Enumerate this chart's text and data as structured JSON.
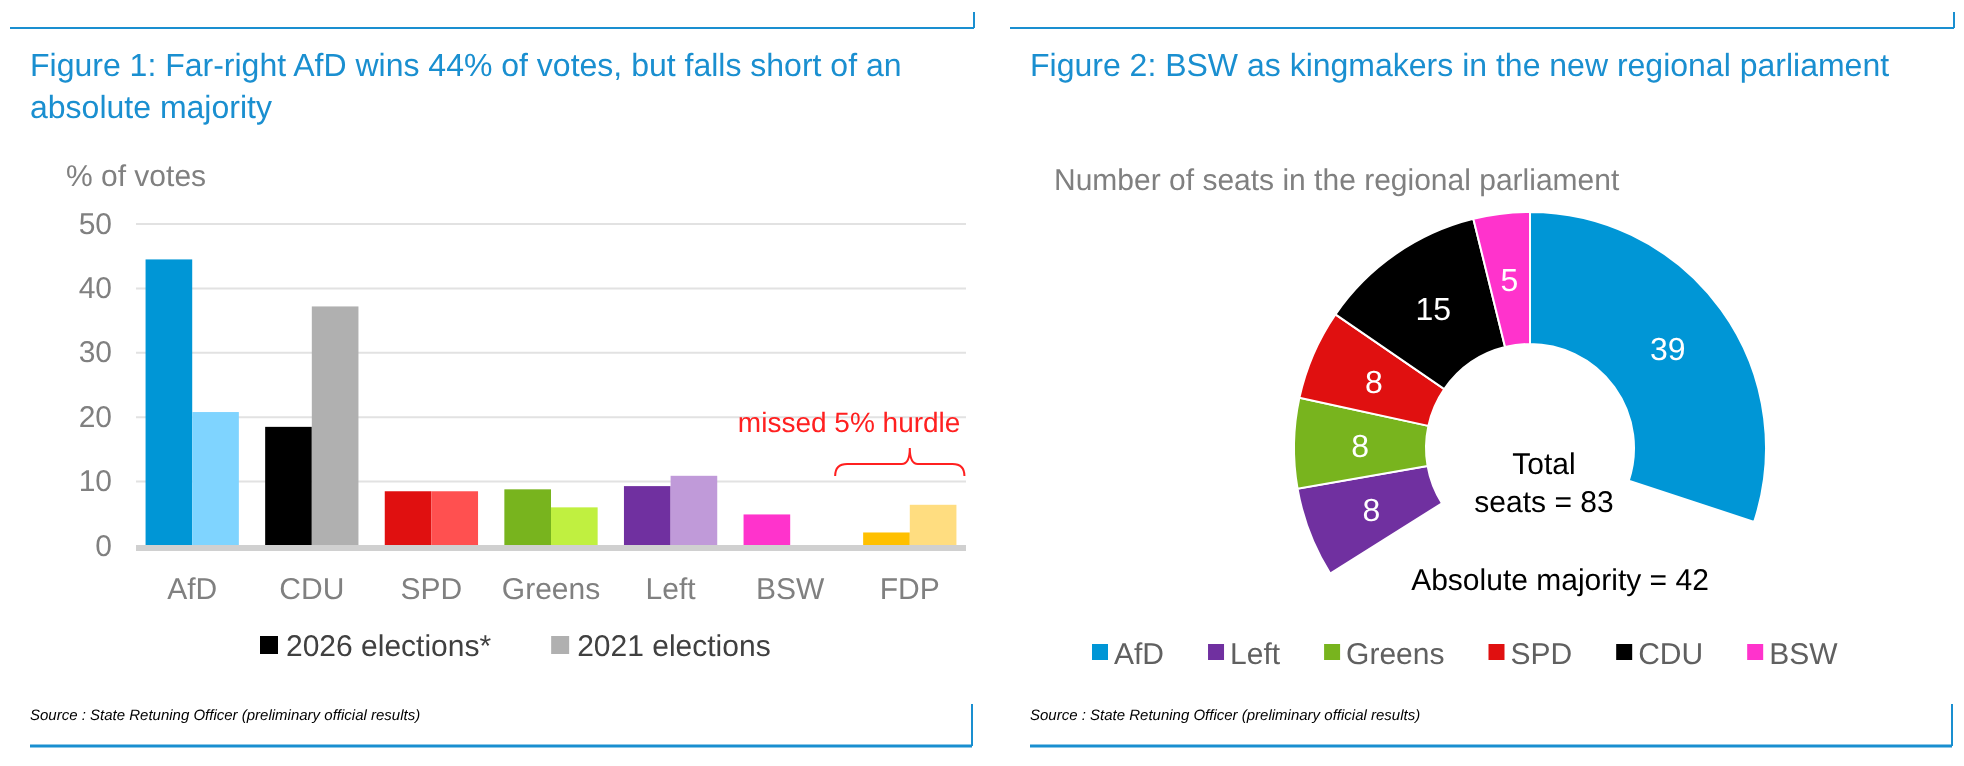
{
  "chart_data": [
    {
      "type": "bar",
      "title": "Figure 1: Far-right AfD wins 44% of votes, but falls short of an absolute majority",
      "ylabel": "% of votes",
      "categories": [
        "AfD",
        "CDU",
        "SPD",
        "Greens",
        "Left",
        "BSW",
        "FDP"
      ],
      "series": [
        {
          "name": "2026 elections*",
          "color": "#000000",
          "colors": [
            "#0096d6",
            "#000000",
            "#e01010",
            "#78b41e",
            "#7030a0",
            "#ff33cc",
            "#ffc000"
          ],
          "values": [
            44.5,
            18.5,
            8.5,
            8.8,
            9.3,
            4.9,
            2.1
          ]
        },
        {
          "name": "2021 elections",
          "color": "#b0b0b0",
          "colors": [
            "#7fd4ff",
            "#b0b0b0",
            "#ff5050",
            "#c0f040",
            "#c09ad9",
            null,
            "#ffdd80"
          ],
          "values": [
            20.8,
            37.2,
            8.5,
            6.0,
            10.9,
            null,
            6.4
          ]
        }
      ],
      "ylim": [
        0,
        50
      ],
      "yticks": [
        0,
        10,
        20,
        30,
        40,
        50
      ],
      "grid": "y",
      "legend": "bottom",
      "annotations": [
        "missed 5% hurdle",
        "Source : State Retuning Officer (preliminary official results)"
      ]
    },
    {
      "type": "donut",
      "title": "Figure 2: BSW as kingmakers in the new regional parliament",
      "subtitle": "Number of seats in the regional parliament",
      "categories": [
        "AfD",
        "Left",
        "Greens",
        "SPD",
        "CDU",
        "BSW"
      ],
      "values": [
        39,
        8,
        8,
        8,
        15,
        5
      ],
      "colors": [
        "#0096d6",
        "#7030a0",
        "#78b41e",
        "#e01010",
        "#000000",
        "#ff33cc"
      ],
      "data_labels": true,
      "legend": "bottom",
      "annotations": [
        "Total\nseats = 83",
        "Absolute majority = 42",
        "Source : State Retuning Officer (preliminary official results)"
      ]
    }
  ]
}
